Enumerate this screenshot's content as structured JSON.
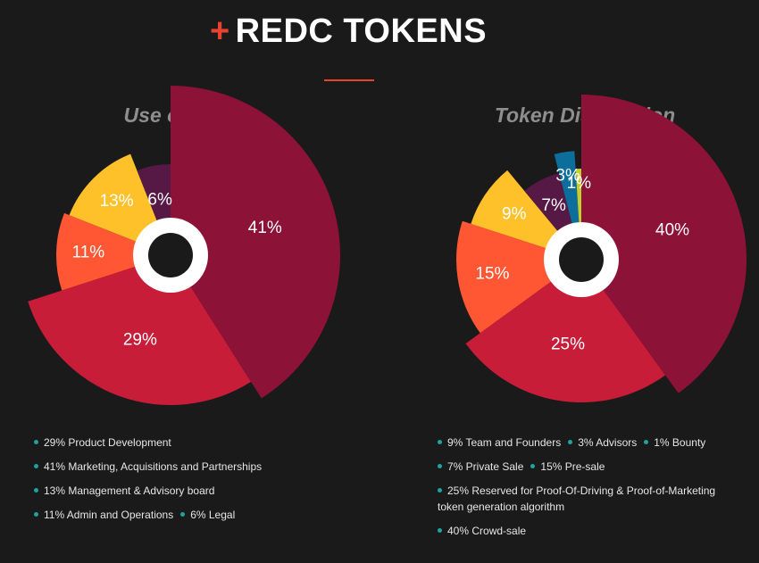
{
  "header": {
    "plus": "+",
    "title": "REDC TOKENS"
  },
  "colors": {
    "accent": "#e8432f",
    "legend_dot": "#1fa3a0",
    "hole_ring": "#ffffff",
    "hole_center": "#1b1a1b"
  },
  "chart_data": [
    {
      "type": "pie",
      "title": "Use of Fund",
      "slices": [
        {
          "label": "41%",
          "value": 41,
          "color": "#8c1238"
        },
        {
          "label": "29%",
          "value": 29,
          "color": "#c71d38"
        },
        {
          "label": "11%",
          "value": 11,
          "color": "#ff5733"
        },
        {
          "label": "13%",
          "value": 13,
          "color": "#ffc12a"
        },
        {
          "label": "6%",
          "value": 6,
          "color": "#561845"
        }
      ],
      "legend": [
        [
          "29% Product Development"
        ],
        [
          "41% Marketing, Acquisitions and Partnerships"
        ],
        [
          "13% Management & Advisory board"
        ],
        [
          "11% Admin and Operations",
          "6% Legal"
        ]
      ]
    },
    {
      "type": "pie",
      "title": "Token Distribution",
      "slices": [
        {
          "label": "40%",
          "value": 40,
          "color": "#8c1238"
        },
        {
          "label": "25%",
          "value": 25,
          "color": "#c71d38"
        },
        {
          "label": "15%",
          "value": 15,
          "color": "#ff5733"
        },
        {
          "label": "9%",
          "value": 9,
          "color": "#ffc12a"
        },
        {
          "label": "7%",
          "value": 7,
          "color": "#561845"
        },
        {
          "label": "3%",
          "value": 3,
          "color": "#0d6e9b"
        },
        {
          "label": "1%",
          "value": 1,
          "color": "#c4ce2d"
        }
      ],
      "legend": [
        [
          "9% Team and Founders",
          "3% Advisors",
          "1% Bounty"
        ],
        [
          "7% Private Sale",
          "15% Pre-sale"
        ],
        [
          "25% Reserved for Proof-Of-Driving & Proof-of-Marketing token generation algorithm"
        ],
        [
          "40% Crowd-sale"
        ]
      ]
    }
  ]
}
